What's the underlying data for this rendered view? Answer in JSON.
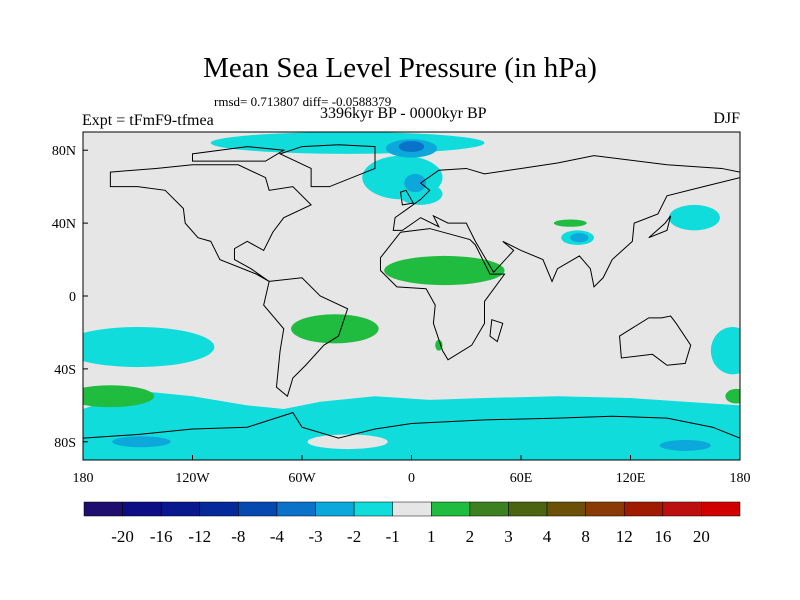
{
  "title": "Mean Sea Level Pressure (in hPa)",
  "stats": "rmsd= 0.713807 diff= -0.0588379",
  "experiment": "Expt = tFmF9-tfmea",
  "period": "3396kyr BP - 0000kyr BP",
  "season": "DJF",
  "chart_data": {
    "type": "heatmap",
    "projection": "cylindrical-equidistant",
    "title": "Mean Sea Level Pressure (in hPa)",
    "xlim": [
      -180,
      180
    ],
    "ylim": [
      -90,
      90
    ],
    "x_ticks": [
      {
        "v": -180,
        "label": "180"
      },
      {
        "v": -120,
        "label": "120W"
      },
      {
        "v": -60,
        "label": "60W"
      },
      {
        "v": 0,
        "label": "0"
      },
      {
        "v": 60,
        "label": "60E"
      },
      {
        "v": 120,
        "label": "120E"
      },
      {
        "v": 180,
        "label": "180"
      }
    ],
    "y_ticks": [
      {
        "v": 80,
        "label": "80N"
      },
      {
        "v": 40,
        "label": "40N"
      },
      {
        "v": 0,
        "label": "0"
      },
      {
        "v": -40,
        "label": "40S"
      },
      {
        "v": -80,
        "label": "80S"
      }
    ],
    "colorbar": {
      "labels": [
        "-20",
        "-16",
        "-12",
        "-8",
        "-4",
        "-3",
        "-2",
        "-1",
        "1",
        "2",
        "3",
        "4",
        "8",
        "12",
        "16",
        "20"
      ],
      "colors": [
        "#1e0e6e",
        "#0d0d85",
        "#08188e",
        "#05289a",
        "#0448b0",
        "#0a72c8",
        "#0ca8dc",
        "#10dcdc",
        "#e6e6e6",
        "#20bc40",
        "#3c8020",
        "#4a6410",
        "#6c5008",
        "#8a3a04",
        "#a01c00",
        "#bc1010",
        "#d00000"
      ]
    },
    "background_level_color": "#e6e6e6",
    "anomaly_regions": [
      {
        "name": "arctic",
        "lon": -35,
        "lat": 84,
        "rlon": 75,
        "rlat": 6,
        "color": "#10dcdc"
      },
      {
        "name": "north-atlantic",
        "lon": -5,
        "lat": 65,
        "rlon": 22,
        "rlat": 12,
        "color": "#10dcdc"
      },
      {
        "name": "norwegian-sea",
        "lon": 5,
        "lat": 56,
        "rlon": 12,
        "rlat": 6,
        "color": "#10dcdc"
      },
      {
        "name": "arctic-core",
        "lon": 0,
        "lat": 81,
        "rlon": 14,
        "rlat": 5,
        "color": "#0ca8dc"
      },
      {
        "name": "arctic-core-deep",
        "lon": 0,
        "lat": 82,
        "rlon": 7,
        "rlat": 3,
        "color": "#0a72c8"
      },
      {
        "name": "nordic-core",
        "lon": 2,
        "lat": 62,
        "rlon": 6,
        "rlat": 5,
        "color": "#0ca8dc"
      },
      {
        "name": "north-pacific",
        "lon": 155,
        "lat": 43,
        "rlon": 14,
        "rlat": 7,
        "color": "#10dcdc"
      },
      {
        "name": "tibet-green",
        "lon": 87,
        "lat": 40,
        "rlon": 9,
        "rlat": 2,
        "color": "#20bc40"
      },
      {
        "name": "tibet",
        "lon": 91,
        "lat": 32,
        "rlon": 9,
        "rlat": 4,
        "color": "#10dcdc"
      },
      {
        "name": "tibet-core",
        "lon": 92,
        "lat": 32,
        "rlon": 5,
        "rlat": 2.5,
        "color": "#0ca8dc"
      },
      {
        "name": "sahara",
        "lon": 18,
        "lat": 14,
        "rlon": 33,
        "rlat": 8,
        "color": "#20bc40"
      },
      {
        "name": "south-america",
        "lon": -42,
        "lat": -18,
        "rlon": 24,
        "rlat": 8,
        "color": "#20bc40"
      },
      {
        "name": "southern-africa",
        "lon": 15,
        "lat": -27,
        "rlon": 2,
        "rlat": 3,
        "color": "#20bc40"
      },
      {
        "name": "south-pacific",
        "lon": -150,
        "lat": -28,
        "rlon": 42,
        "rlat": 11,
        "color": "#10dcdc"
      },
      {
        "name": "south-pacific-green",
        "lon": -165,
        "lat": -55,
        "rlon": 24,
        "rlat": 6,
        "color": "#20bc40"
      },
      {
        "name": "tasman",
        "lon": 176,
        "lat": -30,
        "rlon": 12,
        "rlat": 13,
        "color": "#10dcdc"
      },
      {
        "name": "tasman-green",
        "lon": 178,
        "lat": -55,
        "rlon": 6,
        "rlat": 4,
        "color": "#20bc40"
      },
      {
        "name": "antarctic-blue-1",
        "lon": -148,
        "lat": -80,
        "rlon": 16,
        "rlat": 3,
        "color": "#0ca8dc"
      },
      {
        "name": "antarctic-blue-2",
        "lon": 150,
        "lat": -82,
        "rlon": 14,
        "rlat": 3,
        "color": "#0ca8dc"
      },
      {
        "name": "weddell",
        "lon": -35,
        "lat": -80,
        "rlon": 22,
        "rlat": 4,
        "color": "#e6e6e6"
      }
    ],
    "southern_band": {
      "lat_top": -58,
      "color": "#10dcdc"
    }
  }
}
